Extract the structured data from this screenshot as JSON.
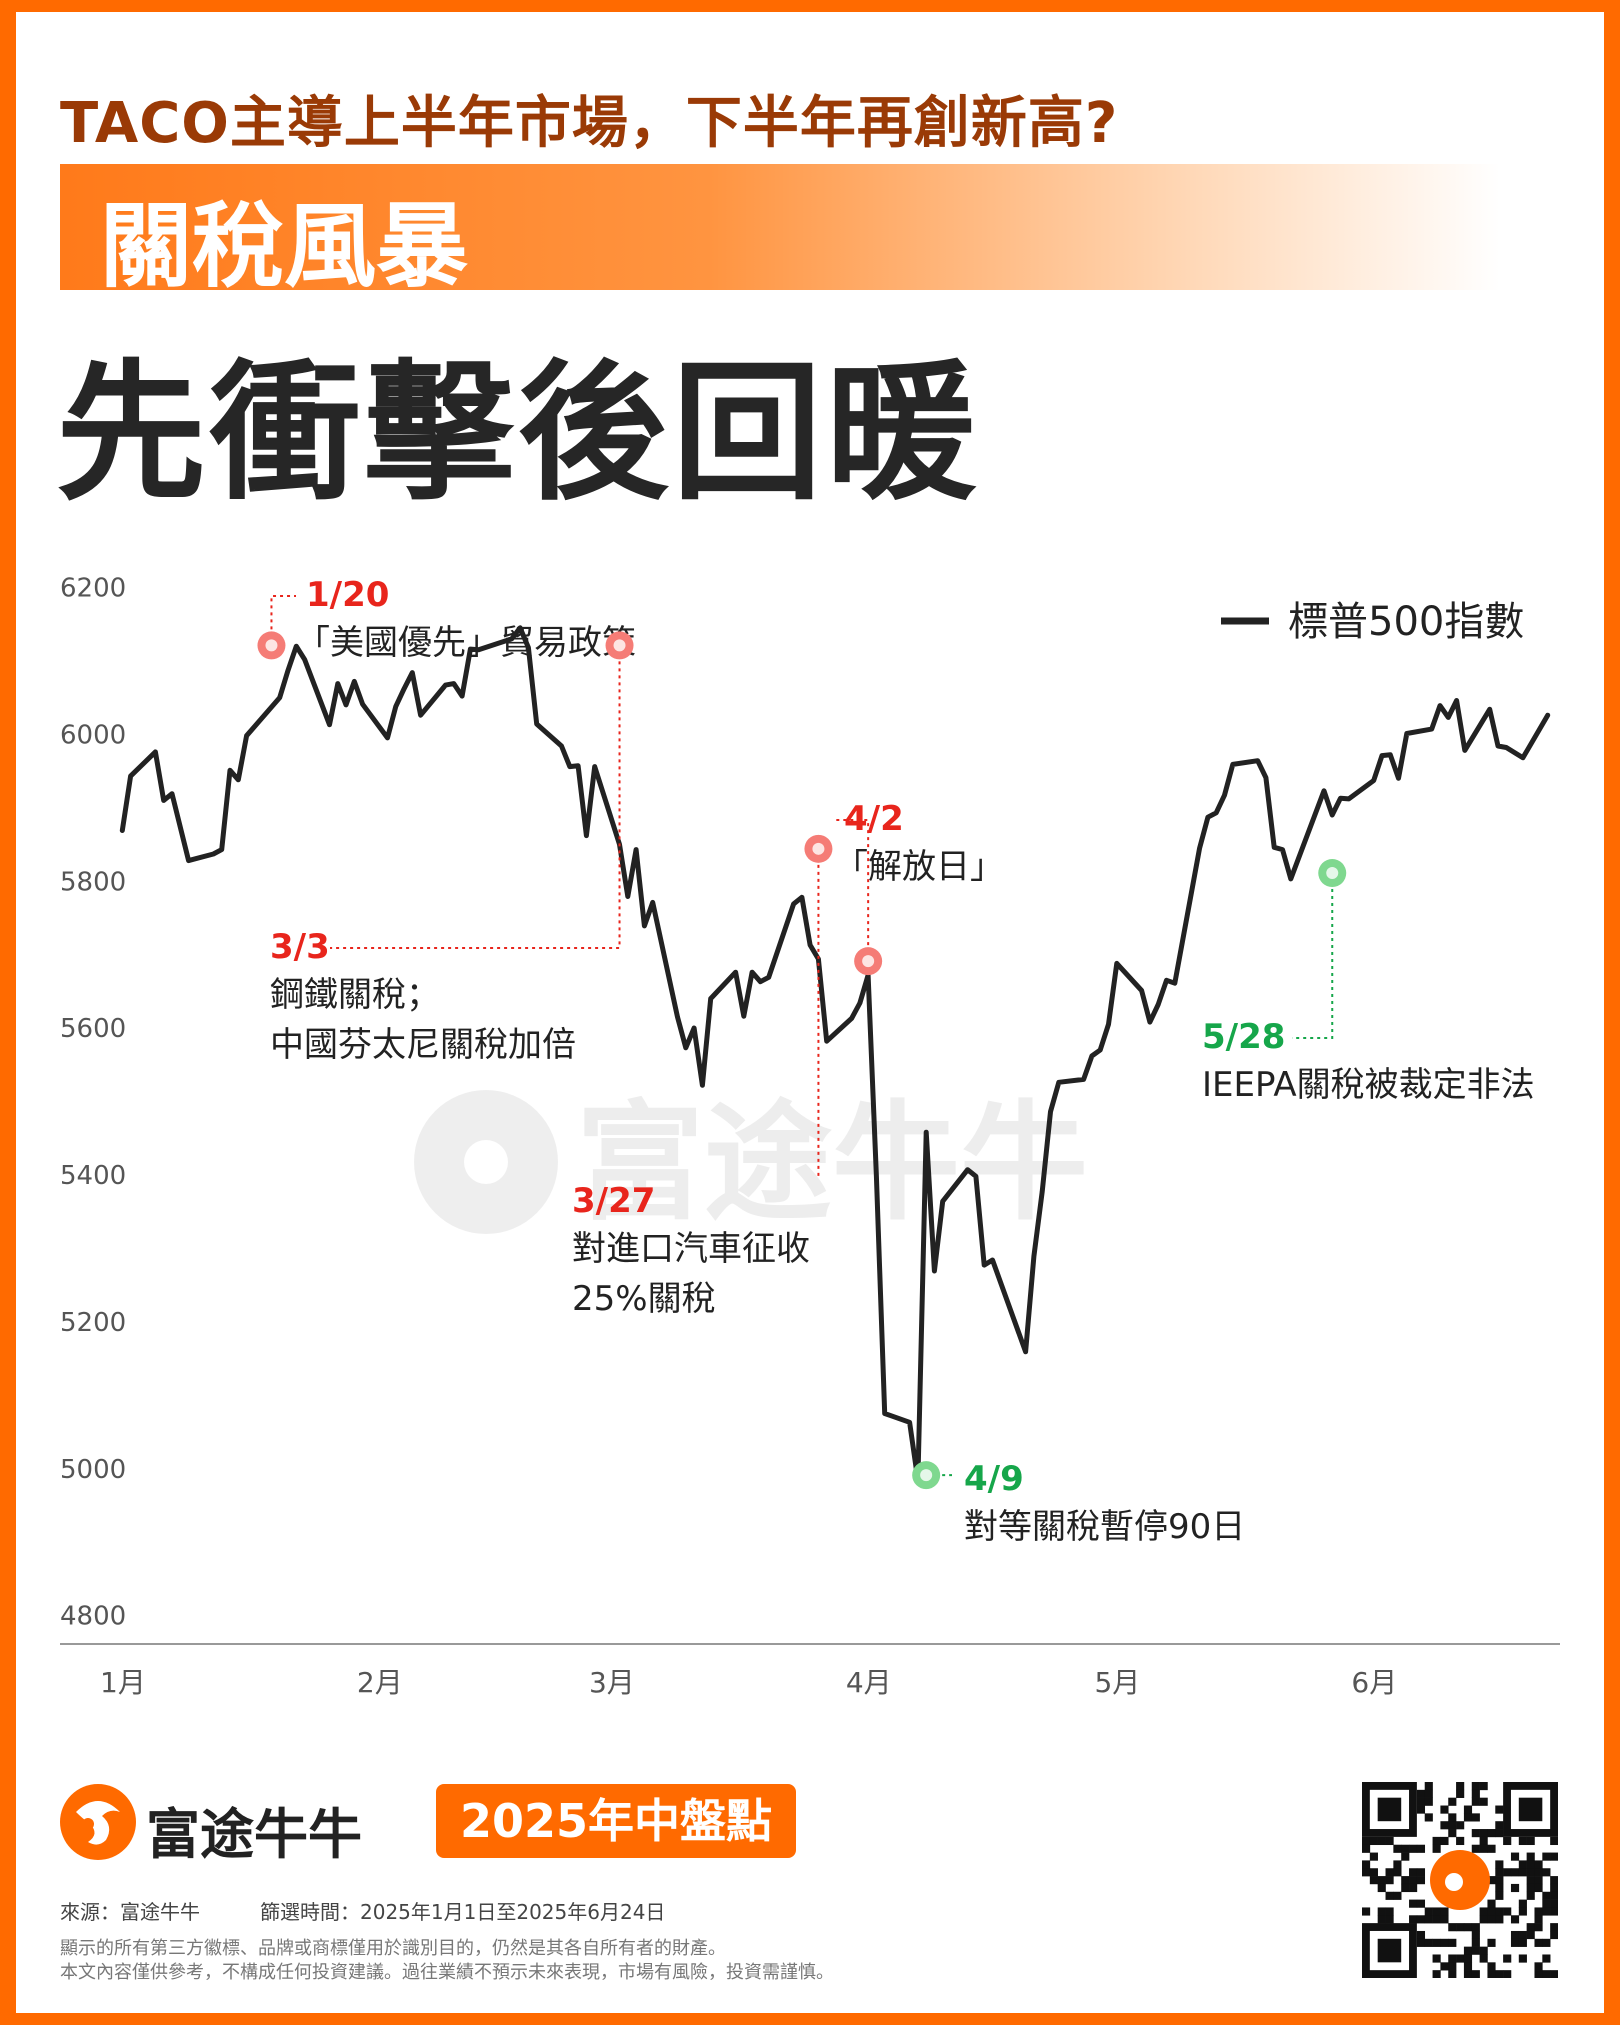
{
  "header": {
    "kicker": "TACO主導上半年市場，下半年再創新高?",
    "band_title": "關稅風暴",
    "headline": "先衝擊後回暖"
  },
  "watermark": "富途牛牛",
  "chart_data": {
    "type": "line",
    "legend": "標普500指數",
    "legend_position": "top-right",
    "y_ticks": [
      6200,
      6000,
      5800,
      5600,
      5400,
      5200,
      5000,
      4800
    ],
    "ylim": [
      4790,
      6220
    ],
    "x_ticks": [
      "1月",
      "2月",
      "3月",
      "4月",
      "5月",
      "6月"
    ],
    "xlim": [
      "2025-01-01",
      "2025-06-24"
    ],
    "x_tick_dates": [
      "2025-01-01",
      "2025-02-01",
      "2025-03-01",
      "2025-04-01",
      "2025-05-01",
      "2025-06-01"
    ],
    "grid": false,
    "series": [
      {
        "name": "標普500指數",
        "color": "#222222",
        "points": [
          [
            "2025-01-02",
            5868
          ],
          [
            "2025-01-03",
            5942
          ],
          [
            "2025-01-06",
            5975
          ],
          [
            "2025-01-07",
            5909
          ],
          [
            "2025-01-08",
            5918
          ],
          [
            "2025-01-10",
            5827
          ],
          [
            "2025-01-13",
            5836
          ],
          [
            "2025-01-14",
            5842
          ],
          [
            "2025-01-15",
            5950
          ],
          [
            "2025-01-16",
            5937
          ],
          [
            "2025-01-17",
            5997
          ],
          [
            "2025-01-21",
            6049
          ],
          [
            "2025-01-22",
            6086
          ],
          [
            "2025-01-23",
            6119
          ],
          [
            "2025-01-24",
            6101
          ],
          [
            "2025-01-27",
            6012
          ],
          [
            "2025-01-28",
            6068
          ],
          [
            "2025-01-29",
            6039
          ],
          [
            "2025-01-30",
            6071
          ],
          [
            "2025-01-31",
            6040
          ],
          [
            "2025-02-03",
            5994
          ],
          [
            "2025-02-04",
            6037
          ],
          [
            "2025-02-05",
            6061
          ],
          [
            "2025-02-06",
            6083
          ],
          [
            "2025-02-07",
            6025
          ],
          [
            "2025-02-10",
            6066
          ],
          [
            "2025-02-11",
            6068
          ],
          [
            "2025-02-12",
            6051
          ],
          [
            "2025-02-13",
            6115
          ],
          [
            "2025-02-14",
            6114
          ],
          [
            "2025-02-18",
            6129
          ],
          [
            "2025-02-19",
            6144
          ],
          [
            "2025-02-20",
            6117
          ],
          [
            "2025-02-21",
            6013
          ],
          [
            "2025-02-24",
            5983
          ],
          [
            "2025-02-25",
            5955
          ],
          [
            "2025-02-26",
            5956
          ],
          [
            "2025-02-27",
            5861
          ],
          [
            "2025-02-28",
            5955
          ],
          [
            "2025-03-03",
            5849
          ],
          [
            "2025-03-04",
            5778
          ],
          [
            "2025-03-05",
            5842
          ],
          [
            "2025-03-06",
            5738
          ],
          [
            "2025-03-07",
            5770
          ],
          [
            "2025-03-10",
            5614
          ],
          [
            "2025-03-11",
            5572
          ],
          [
            "2025-03-12",
            5599
          ],
          [
            "2025-03-13",
            5521
          ],
          [
            "2025-03-14",
            5639
          ],
          [
            "2025-03-17",
            5675
          ],
          [
            "2025-03-18",
            5615
          ],
          [
            "2025-03-19",
            5675
          ],
          [
            "2025-03-20",
            5662
          ],
          [
            "2025-03-21",
            5668
          ],
          [
            "2025-03-24",
            5768
          ],
          [
            "2025-03-25",
            5777
          ],
          [
            "2025-03-26",
            5712
          ],
          [
            "2025-03-27",
            5693
          ],
          [
            "2025-03-28",
            5581
          ],
          [
            "2025-03-31",
            5612
          ],
          [
            "2025-04-01",
            5633
          ],
          [
            "2025-04-02",
            5671
          ],
          [
            "2025-04-03",
            5397
          ],
          [
            "2025-04-04",
            5074
          ],
          [
            "2025-04-07",
            5062
          ],
          [
            "2025-04-08",
            4983
          ],
          [
            "2025-04-09",
            5457
          ],
          [
            "2025-04-10",
            5268
          ],
          [
            "2025-04-11",
            5363
          ],
          [
            "2025-04-14",
            5406
          ],
          [
            "2025-04-15",
            5397
          ],
          [
            "2025-04-16",
            5276
          ],
          [
            "2025-04-17",
            5283
          ],
          [
            "2025-04-21",
            5158
          ],
          [
            "2025-04-22",
            5288
          ],
          [
            "2025-04-23",
            5376
          ],
          [
            "2025-04-24",
            5485
          ],
          [
            "2025-04-25",
            5525
          ],
          [
            "2025-04-28",
            5529
          ],
          [
            "2025-04-29",
            5561
          ],
          [
            "2025-04-30",
            5569
          ],
          [
            "2025-05-01",
            5604
          ],
          [
            "2025-05-02",
            5687
          ],
          [
            "2025-05-05",
            5650
          ],
          [
            "2025-05-06",
            5607
          ],
          [
            "2025-05-07",
            5631
          ],
          [
            "2025-05-08",
            5664
          ],
          [
            "2025-05-09",
            5660
          ],
          [
            "2025-05-12",
            5844
          ],
          [
            "2025-05-13",
            5886
          ],
          [
            "2025-05-14",
            5892
          ],
          [
            "2025-05-15",
            5916
          ],
          [
            "2025-05-16",
            5958
          ],
          [
            "2025-05-19",
            5963
          ],
          [
            "2025-05-20",
            5940
          ],
          [
            "2025-05-21",
            5845
          ],
          [
            "2025-05-22",
            5842
          ],
          [
            "2025-05-23",
            5802
          ],
          [
            "2025-05-27",
            5922
          ],
          [
            "2025-05-28",
            5889
          ],
          [
            "2025-05-29",
            5912
          ],
          [
            "2025-05-30",
            5911
          ],
          [
            "2025-06-02",
            5936
          ],
          [
            "2025-06-03",
            5970
          ],
          [
            "2025-06-04",
            5971
          ],
          [
            "2025-06-05",
            5939
          ],
          [
            "2025-06-06",
            6000
          ],
          [
            "2025-06-09",
            6006
          ],
          [
            "2025-06-10",
            6038
          ],
          [
            "2025-06-11",
            6022
          ],
          [
            "2025-06-12",
            6045
          ],
          [
            "2025-06-13",
            5977
          ],
          [
            "2025-06-16",
            6033
          ],
          [
            "2025-06-17",
            5983
          ],
          [
            "2025-06-18",
            5981
          ],
          [
            "2025-06-20",
            5967
          ],
          [
            "2025-06-23",
            6025
          ]
        ]
      }
    ],
    "annotations": [
      {
        "date": "2025-01-20",
        "value": 6120,
        "label_date": "1/20",
        "lines": [
          "「美國優先」貿易政策"
        ],
        "color": "#e8251c",
        "marker": "#f57c76"
      },
      {
        "date": "2025-03-03",
        "value": 6120,
        "label_date": "3/3",
        "lines": [
          "鋼鐵關稅；",
          "中國芬太尼關稅加倍"
        ],
        "color": "#e8251c",
        "marker": "#f57c76"
      },
      {
        "date": "2025-03-27",
        "value": 5843,
        "label_date": "3/27",
        "lines": [
          "對進口汽車征收",
          "25%關稅"
        ],
        "color": "#e8251c",
        "marker": "#f57c76"
      },
      {
        "date": "2025-04-02",
        "value": 5690,
        "label_date": "4/2",
        "lines": [
          "「解放日」"
        ],
        "color": "#e8251c",
        "marker": "#f57c76"
      },
      {
        "date": "2025-04-09",
        "value": 4990,
        "label_date": "4/9",
        "lines": [
          "對等關稅暫停90日"
        ],
        "color": "#16a64a",
        "marker": "#7fd88f"
      },
      {
        "date": "2025-05-28",
        "value": 5810,
        "label_date": "5/28",
        "lines": [
          "IEEPA關稅被裁定非法"
        ],
        "color": "#16a64a",
        "marker": "#7fd88f"
      }
    ]
  },
  "footer": {
    "brand": "富途牛牛",
    "badge": "2025年中盤點",
    "source": "來源：富途牛牛",
    "period": "篩選時間：2025年1月1日至2025年6月24日",
    "disclaimer1": "顯示的所有第三方徽標、品牌或商標僅用於識別目的，仍然是其各自所有者的財產。",
    "disclaimer2": "本文內容僅供參考，不構成任何投資建議。過往業績不預示未來表現，市場有風險，投資需謹慎。"
  },
  "colors": {
    "frame": "#ff6a00",
    "accent": "#ff6a00",
    "line": "#222222",
    "event_red": "#e8251c",
    "event_green": "#16a64a"
  }
}
